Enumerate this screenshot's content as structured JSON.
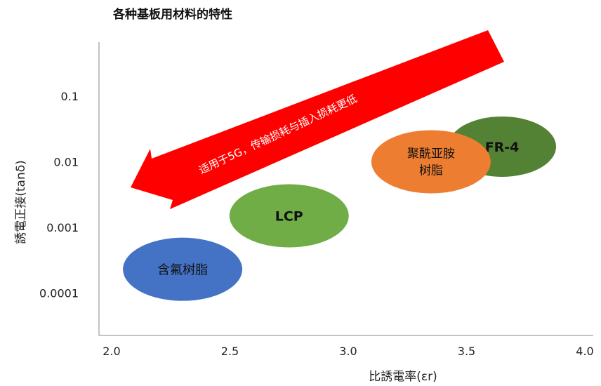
{
  "chart_data": {
    "type": "scatter",
    "title": "各种基板用材料的特性",
    "xlabel": "比誘電率(εr)",
    "ylabel": "誘電正接(tanδ)",
    "x_ticks": [
      "2.0",
      "2.5",
      "3.0",
      "3.5",
      "4.0"
    ],
    "y_ticks": [
      "0.1",
      "0.01",
      "0.001",
      "0.0001"
    ],
    "xlim": [
      2.0,
      4.0
    ],
    "y_scale": "log",
    "grid": false,
    "annotation": "适用于5G，传输损耗与插入损耗更低",
    "series": [
      {
        "name": "含氟树脂",
        "label": "含氟树脂",
        "x": 2.3,
        "y": 0.00023,
        "color": "#4472c4",
        "text_color": "#111111"
      },
      {
        "name": "LCP",
        "label": "LCP",
        "x": 2.75,
        "y": 0.0015,
        "color": "#70ad47",
        "text_color": "#111111"
      },
      {
        "name": "FR-4",
        "label": "FR-4",
        "x": 3.65,
        "y": 0.017,
        "color": "#548235",
        "text_color": "#111111"
      },
      {
        "name": "聚酰亚胺树脂",
        "label_lines": [
          "聚酰亚胺",
          "树脂"
        ],
        "x": 3.35,
        "y": 0.01,
        "color": "#ed7d31",
        "text_color": "#111111"
      }
    ],
    "arrow_color": "#ff0000"
  }
}
